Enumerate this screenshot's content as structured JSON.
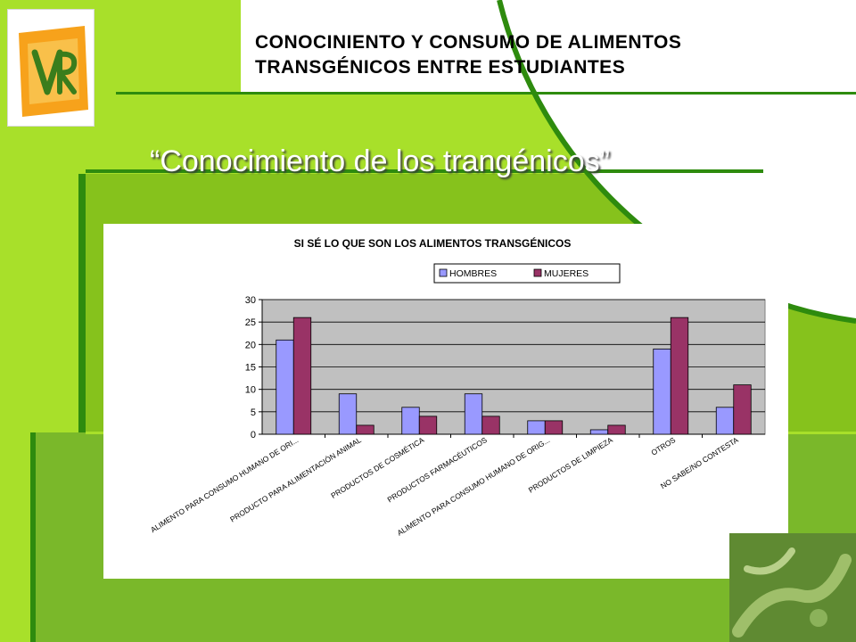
{
  "slide": {
    "header_title_line1": "CONOCINIENTO Y CONSUMO DE ALIMENTOS",
    "header_title_line2": "TRANSGÉNICOS ENTRE ESTUDIANTES",
    "subtitle": "“Conocimiento de los trangénicos”",
    "logo_text": "VR"
  },
  "colors": {
    "background_green": "#86c21c",
    "dark_green": "#2e8b0e",
    "lime": "#a8e02a",
    "hombres": "#9999ff",
    "mujeres": "#993366",
    "plot_area": "#c0c0c0"
  },
  "chart_data": {
    "type": "bar",
    "title": "SI SÉ LO QUE SON LOS ALIMENTOS TRANSGÉNICOS",
    "xlabel": "",
    "ylabel": "",
    "ylim": [
      0,
      30
    ],
    "yticks": [
      0,
      5,
      10,
      15,
      20,
      25,
      30
    ],
    "grid": true,
    "legend_position": "top",
    "categories": [
      "ALIMENTO PARA CONSUMO HUMANO DE ORI...",
      "PRODUCTO PARA ALIMENTACIÓN ANIMAL",
      "PRODUCTOS DE COSMÉTICA",
      "PRODUCTOS FARMACÉUTICOS",
      "ALIMENTO PARA CONSUMO HUMANO DE ORIG...",
      "PRODUCTOS DE LIMPIEZA",
      "OTROS",
      "NO SABE/NO CONTESTA"
    ],
    "series": [
      {
        "name": "HOMBRES",
        "color": "#9999ff",
        "values": [
          21,
          9,
          6,
          9,
          3,
          1,
          19,
          6
        ]
      },
      {
        "name": "MUJERES",
        "color": "#993366",
        "values": [
          26,
          2,
          4,
          4,
          3,
          2,
          26,
          11
        ]
      }
    ]
  }
}
